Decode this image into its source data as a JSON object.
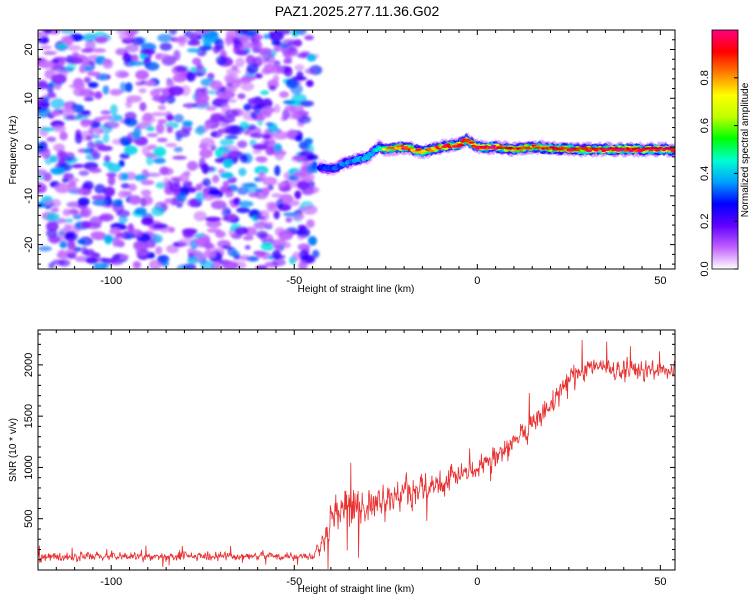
{
  "title": "PAZ1.2025.277.11.36.G02",
  "chart_data": [
    {
      "type": "heatmap",
      "name": "spectrogram",
      "xlabel": "Height of straight line (km)",
      "ylabel": "Frequency (Hz)",
      "xlim": [
        -120,
        54
      ],
      "ylim": [
        -25,
        24
      ],
      "x_ticks": [
        -100,
        -50,
        0,
        50
      ],
      "y_ticks": [
        -20,
        -10,
        0,
        10,
        20
      ],
      "noise_region_x": [
        -120,
        -43
      ],
      "signal_trace": {
        "x": [
          -43,
          -40,
          -35,
          -30,
          -27,
          -25,
          -20,
          -15,
          -10,
          -5,
          -3,
          0,
          5,
          10,
          15,
          20,
          30,
          40,
          54
        ],
        "y": [
          -4,
          -4.5,
          -3,
          -2,
          0,
          -0.5,
          0,
          -1,
          0,
          0.5,
          1.5,
          0,
          0,
          -0.5,
          0,
          -0.3,
          -0.5,
          -0.5,
          -0.5
        ],
        "amp": [
          0.4,
          0.45,
          0.5,
          0.55,
          0.6,
          0.75,
          0.85,
          0.8,
          0.85,
          0.9,
          0.85,
          0.95,
          0.9,
          0.85,
          0.8,
          0.85,
          0.9,
          0.95,
          0.95
        ]
      },
      "colorbar": {
        "label": "Normalized spectral amplitude",
        "ticks": [
          0.0,
          0.2,
          0.4,
          0.6,
          0.8
        ],
        "range": [
          0,
          1
        ],
        "colors": [
          "#ffffff",
          "#c060ff",
          "#6000ff",
          "#0000ff",
          "#00a0ff",
          "#00ffd0",
          "#00ff00",
          "#c0ff00",
          "#ffff00",
          "#ff8000",
          "#ff0000",
          "#ff0080"
        ]
      }
    },
    {
      "type": "line",
      "name": "snr",
      "xlabel": "Height of straight line (km)",
      "ylabel": "SNR (10 * v/v)",
      "xlim": [
        -120,
        54
      ],
      "ylim": [
        0,
        2340
      ],
      "x_ticks": [
        -100,
        -50,
        0,
        50
      ],
      "y_ticks": [
        500,
        1000,
        1500,
        2000
      ],
      "color": "#e83030",
      "trend": {
        "x": [
          -120,
          -80,
          -45,
          -42,
          -40,
          -35,
          -30,
          -20,
          -10,
          0,
          10,
          20,
          25,
          30,
          40,
          54
        ],
        "y": [
          130,
          130,
          140,
          300,
          550,
          580,
          600,
          750,
          850,
          1000,
          1250,
          1600,
          1850,
          2000,
          1950,
          1950
        ],
        "noise": [
          70,
          70,
          70,
          200,
          320,
          320,
          300,
          250,
          200,
          180,
          180,
          200,
          220,
          180,
          150,
          150
        ]
      },
      "samples": 1400
    }
  ]
}
